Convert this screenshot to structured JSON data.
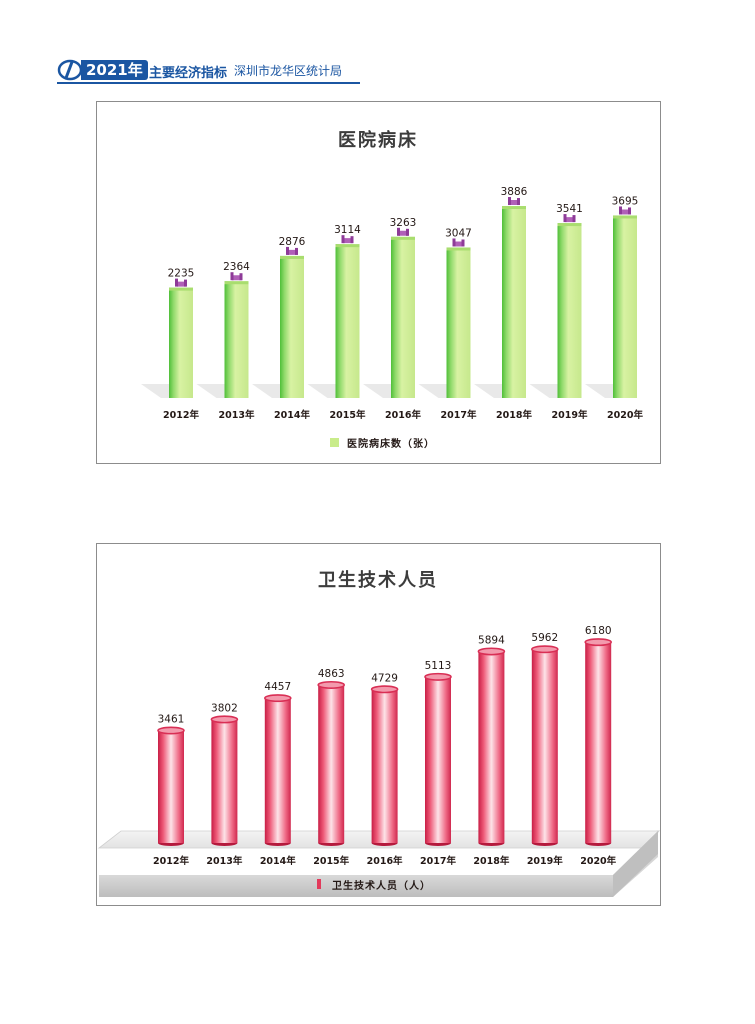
{
  "header": {
    "year": "2021年",
    "title": "主要经济指标",
    "org": "深圳市龙华区统计局"
  },
  "colors": {
    "brand": "#1b56a2",
    "beds_bar": "#c9ec8a",
    "beds_bar_side": "#5cc63c",
    "staff_bar": "#e23a5b",
    "staff_bar_light": "#fbd5dc"
  },
  "chart_data": [
    {
      "type": "bar",
      "title": "医院病床",
      "categories": [
        "2012年",
        "2013年",
        "2014年",
        "2015年",
        "2016年",
        "2017年",
        "2018年",
        "2019年",
        "2020年"
      ],
      "series": [
        {
          "name": "医院病床数（张）",
          "values": [
            2235,
            2364,
            2876,
            3114,
            3263,
            3047,
            3886,
            3541,
            3695
          ]
        }
      ],
      "data_labels": [
        "2235",
        "2364",
        "2876",
        "3114",
        "3263",
        "3047",
        "3886",
        "3541",
        "3695"
      ],
      "ylim": [
        0,
        4000
      ],
      "grid": false,
      "legend_position": "bottom",
      "legend": [
        "医院病床数（张）"
      ],
      "bar_icon": "hospital-bed-icon"
    },
    {
      "type": "bar",
      "title": "卫生技术人员",
      "categories": [
        "2012年",
        "2013年",
        "2014年",
        "2015年",
        "2016年",
        "2017年",
        "2018年",
        "2019年",
        "2020年"
      ],
      "series": [
        {
          "name": "卫生技术人员（人）",
          "values": [
            3461,
            3802,
            4457,
            4863,
            4729,
            5113,
            5894,
            5962,
            6180
          ]
        }
      ],
      "data_labels": [
        "3461",
        "3802",
        "4457",
        "4863",
        "4729",
        "5113",
        "5894",
        "5962",
        "6180"
      ],
      "ylim": [
        0,
        6400
      ],
      "grid": false,
      "legend_position": "bottom",
      "legend": [
        "卫生技术人员（人）"
      ],
      "bar_shape": "cylinder"
    }
  ]
}
